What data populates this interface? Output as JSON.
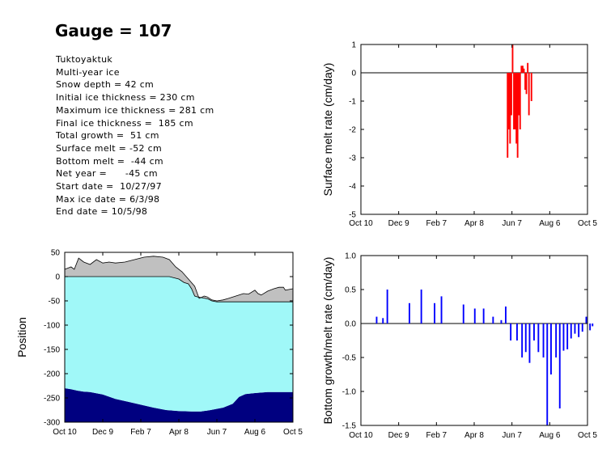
{
  "title": "Gauge = 107",
  "info_lines": [
    "Tuktoyaktuk",
    "Multi-year ice",
    "Snow depth = 42 cm",
    "Initial ice thickness = 230 cm",
    "Maximum ice thickness = 281 cm",
    "Final ice thickness =  185 cm",
    "Total growth =  51 cm",
    "Surface melt = -52 cm",
    "Bottom melt =  -44 cm",
    "Net year =      -45 cm",
    "Start date =  10/27/97",
    "Max ice date = 6/3/98",
    "End date = 10/5/98"
  ],
  "colors": {
    "snow": "#c0c0c0",
    "ice": "#a0f8f8",
    "water": "#000080",
    "surface_melt_bars": "#ff0000",
    "bottom_bars": "#0000ff"
  },
  "x_ticks": [
    "Oct 10",
    "Dec 9",
    "Feb 7",
    "Apr 8",
    "Jun 7",
    "Aug 6",
    "Oct 5"
  ],
  "chart_data": [
    {
      "id": "position",
      "type": "area",
      "xlabel": "",
      "ylabel": "Position",
      "ylim": [
        -300,
        50
      ],
      "yticks": [
        50,
        0,
        -50,
        -100,
        -150,
        -200,
        -250,
        -300
      ],
      "x_unit": "days since Oct 10",
      "xlim": [
        0,
        360
      ],
      "series": [
        {
          "name": "snow surface",
          "points": [
            [
              0,
              15
            ],
            [
              10,
              20
            ],
            [
              15,
              15
            ],
            [
              22,
              38
            ],
            [
              30,
              30
            ],
            [
              40,
              25
            ],
            [
              50,
              35
            ],
            [
              60,
              28
            ],
            [
              70,
              30
            ],
            [
              80,
              28
            ],
            [
              95,
              30
            ],
            [
              110,
              35
            ],
            [
              125,
              40
            ],
            [
              140,
              42
            ],
            [
              155,
              40
            ],
            [
              165,
              35
            ],
            [
              175,
              20
            ],
            [
              185,
              10
            ],
            [
              195,
              -5
            ],
            [
              205,
              -20
            ],
            [
              212,
              -45
            ],
            [
              220,
              -40
            ],
            [
              225,
              -42
            ],
            [
              232,
              -48
            ],
            [
              240,
              -50
            ],
            [
              250,
              -48
            ],
            [
              258,
              -45
            ],
            [
              270,
              -40
            ],
            [
              282,
              -35
            ],
            [
              290,
              -36
            ],
            [
              300,
              -28
            ],
            [
              305,
              -35
            ],
            [
              310,
              -38
            ],
            [
              320,
              -30
            ],
            [
              330,
              -25
            ],
            [
              338,
              -22
            ],
            [
              345,
              -22
            ],
            [
              348,
              -28
            ],
            [
              360,
              -25
            ]
          ]
        },
        {
          "name": "ice surface",
          "points": [
            [
              0,
              0
            ],
            [
              165,
              0
            ],
            [
              180,
              -5
            ],
            [
              188,
              -12
            ],
            [
              195,
              -15
            ],
            [
              200,
              -25
            ],
            [
              205,
              -40
            ],
            [
              210,
              -42
            ],
            [
              218,
              -44
            ],
            [
              226,
              -46
            ],
            [
              232,
              -50
            ],
            [
              240,
              -52
            ],
            [
              300,
              -52
            ],
            [
              360,
              -52
            ]
          ]
        },
        {
          "name": "ice bottom",
          "points": [
            [
              0,
              -230
            ],
            [
              10,
              -232
            ],
            [
              20,
              -235
            ],
            [
              30,
              -237
            ],
            [
              40,
              -238
            ],
            [
              60,
              -243
            ],
            [
              80,
              -252
            ],
            [
              100,
              -258
            ],
            [
              120,
              -264
            ],
            [
              140,
              -270
            ],
            [
              160,
              -275
            ],
            [
              180,
              -277
            ],
            [
              200,
              -278
            ],
            [
              215,
              -278
            ],
            [
              230,
              -275
            ],
            [
              250,
              -270
            ],
            [
              265,
              -262
            ],
            [
              275,
              -248
            ],
            [
              285,
              -242
            ],
            [
              300,
              -240
            ],
            [
              320,
              -238
            ],
            [
              360,
              -238
            ]
          ]
        }
      ]
    },
    {
      "id": "surface_melt",
      "type": "bar",
      "xlabel": "",
      "ylabel": "Surface melt rate (cm/day)",
      "ylim": [
        -5,
        1
      ],
      "yticks": [
        1,
        0,
        -1,
        -2,
        -3,
        -4,
        -5
      ],
      "xlim": [
        0,
        360
      ],
      "bars": [
        [
          233,
          -3.0
        ],
        [
          235,
          -2.0
        ],
        [
          237,
          -2.5
        ],
        [
          239,
          -1.5
        ],
        [
          241,
          1.0
        ],
        [
          243,
          -2.0
        ],
        [
          245,
          -2.0
        ],
        [
          247,
          -2.5
        ],
        [
          249,
          -3.0
        ],
        [
          251,
          -1.5
        ],
        [
          253,
          -2.0
        ],
        [
          255,
          0.25
        ],
        [
          257,
          0.25
        ],
        [
          259,
          0.15
        ],
        [
          261,
          -0.6
        ],
        [
          263,
          -0.75
        ],
        [
          265,
          0.35
        ],
        [
          267,
          -1.5
        ],
        [
          271,
          -1.0
        ]
      ]
    },
    {
      "id": "bottom_growth_melt",
      "type": "bar",
      "xlabel": "",
      "ylabel": "Bottom growth/melt rate (cm/day)",
      "ylim": [
        -1.5,
        1.0
      ],
      "yticks": [
        1.0,
        0.5,
        0.0,
        -0.5,
        -1.0,
        -1.5
      ],
      "xlim": [
        0,
        360
      ],
      "bars": [
        [
          25,
          0.1
        ],
        [
          35,
          0.08
        ],
        [
          42,
          0.5
        ],
        [
          77,
          0.3
        ],
        [
          96,
          0.5
        ],
        [
          117,
          0.3
        ],
        [
          128,
          0.4
        ],
        [
          163,
          0.28
        ],
        [
          181,
          0.22
        ],
        [
          195,
          0.22
        ],
        [
          210,
          0.1
        ],
        [
          223,
          0.05
        ],
        [
          230,
          0.25
        ],
        [
          238,
          -0.25
        ],
        [
          248,
          -0.25
        ],
        [
          256,
          -0.5
        ],
        [
          262,
          -0.42
        ],
        [
          268,
          -0.58
        ],
        [
          275,
          -0.25
        ],
        [
          282,
          -0.42
        ],
        [
          290,
          -0.5
        ],
        [
          296,
          -1.5
        ],
        [
          302,
          -0.75
        ],
        [
          310,
          -0.5
        ],
        [
          316,
          -1.25
        ],
        [
          322,
          -0.4
        ],
        [
          328,
          -0.38
        ],
        [
          334,
          -0.22
        ],
        [
          340,
          -0.15
        ],
        [
          346,
          -0.2
        ],
        [
          352,
          -0.12
        ],
        [
          358,
          0.1
        ],
        [
          364,
          -0.1
        ],
        [
          368,
          -0.04
        ]
      ]
    }
  ]
}
